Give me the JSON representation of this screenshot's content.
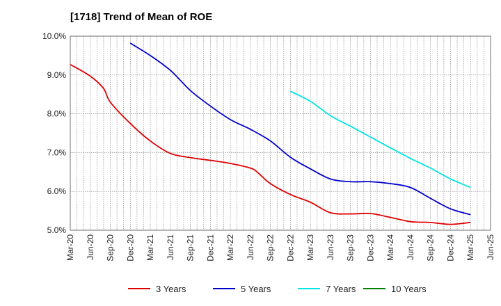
{
  "chart_data": {
    "type": "line",
    "title": "[1718]  Trend of Mean of ROE",
    "xlabel": "",
    "ylabel": "",
    "ylim": [
      5.0,
      10.0
    ],
    "y_ticks": [
      5.0,
      6.0,
      7.0,
      8.0,
      9.0,
      10.0
    ],
    "y_tick_labels": [
      "5.0%",
      "6.0%",
      "7.0%",
      "8.0%",
      "9.0%",
      "10.0%"
    ],
    "x_tick_labels": [
      "Mar-20",
      "Jun-20",
      "Sep-20",
      "Dec-20",
      "Mar-21",
      "Jun-21",
      "Sep-21",
      "Dec-21",
      "Mar-22",
      "Jun-22",
      "Sep-22",
      "Dec-22",
      "Mar-23",
      "Jun-23",
      "Sep-23",
      "Dec-23",
      "Mar-24",
      "Jun-24",
      "Sep-24",
      "Dec-24",
      "Mar-25",
      "Jun-25"
    ],
    "x_range_months": [
      0,
      63
    ],
    "grid": true,
    "legend_position": "bottom",
    "series": [
      {
        "name": "3 Years",
        "color": "#dd0000",
        "points": [
          [
            0,
            9.27
          ],
          [
            3,
            8.97
          ],
          [
            5,
            8.65
          ],
          [
            6,
            8.3
          ],
          [
            9,
            7.75
          ],
          [
            12,
            7.3
          ],
          [
            15,
            6.98
          ],
          [
            18,
            6.87
          ],
          [
            21,
            6.8
          ],
          [
            24,
            6.72
          ],
          [
            27,
            6.6
          ],
          [
            28,
            6.5
          ],
          [
            30,
            6.2
          ],
          [
            33,
            5.92
          ],
          [
            36,
            5.72
          ],
          [
            39,
            5.45
          ],
          [
            42,
            5.42
          ],
          [
            45,
            5.43
          ],
          [
            48,
            5.33
          ],
          [
            51,
            5.22
          ],
          [
            54,
            5.2
          ],
          [
            57,
            5.15
          ],
          [
            60,
            5.2
          ]
        ]
      },
      {
        "name": "5 Years",
        "color": "#0000cc",
        "points": [
          [
            9,
            9.82
          ],
          [
            12,
            9.5
          ],
          [
            15,
            9.12
          ],
          [
            18,
            8.6
          ],
          [
            21,
            8.2
          ],
          [
            24,
            7.85
          ],
          [
            27,
            7.6
          ],
          [
            30,
            7.3
          ],
          [
            33,
            6.88
          ],
          [
            36,
            6.58
          ],
          [
            39,
            6.32
          ],
          [
            42,
            6.25
          ],
          [
            45,
            6.25
          ],
          [
            48,
            6.2
          ],
          [
            51,
            6.1
          ],
          [
            54,
            5.82
          ],
          [
            57,
            5.55
          ],
          [
            60,
            5.4
          ]
        ]
      },
      {
        "name": "7 Years",
        "color": "#00e5e5",
        "points": [
          [
            33,
            8.58
          ],
          [
            36,
            8.32
          ],
          [
            39,
            7.95
          ],
          [
            42,
            7.68
          ],
          [
            45,
            7.4
          ],
          [
            48,
            7.12
          ],
          [
            51,
            6.85
          ],
          [
            54,
            6.6
          ],
          [
            57,
            6.32
          ],
          [
            60,
            6.1
          ]
        ]
      },
      {
        "name": "10 Years",
        "color": "#008000",
        "points": []
      }
    ]
  }
}
